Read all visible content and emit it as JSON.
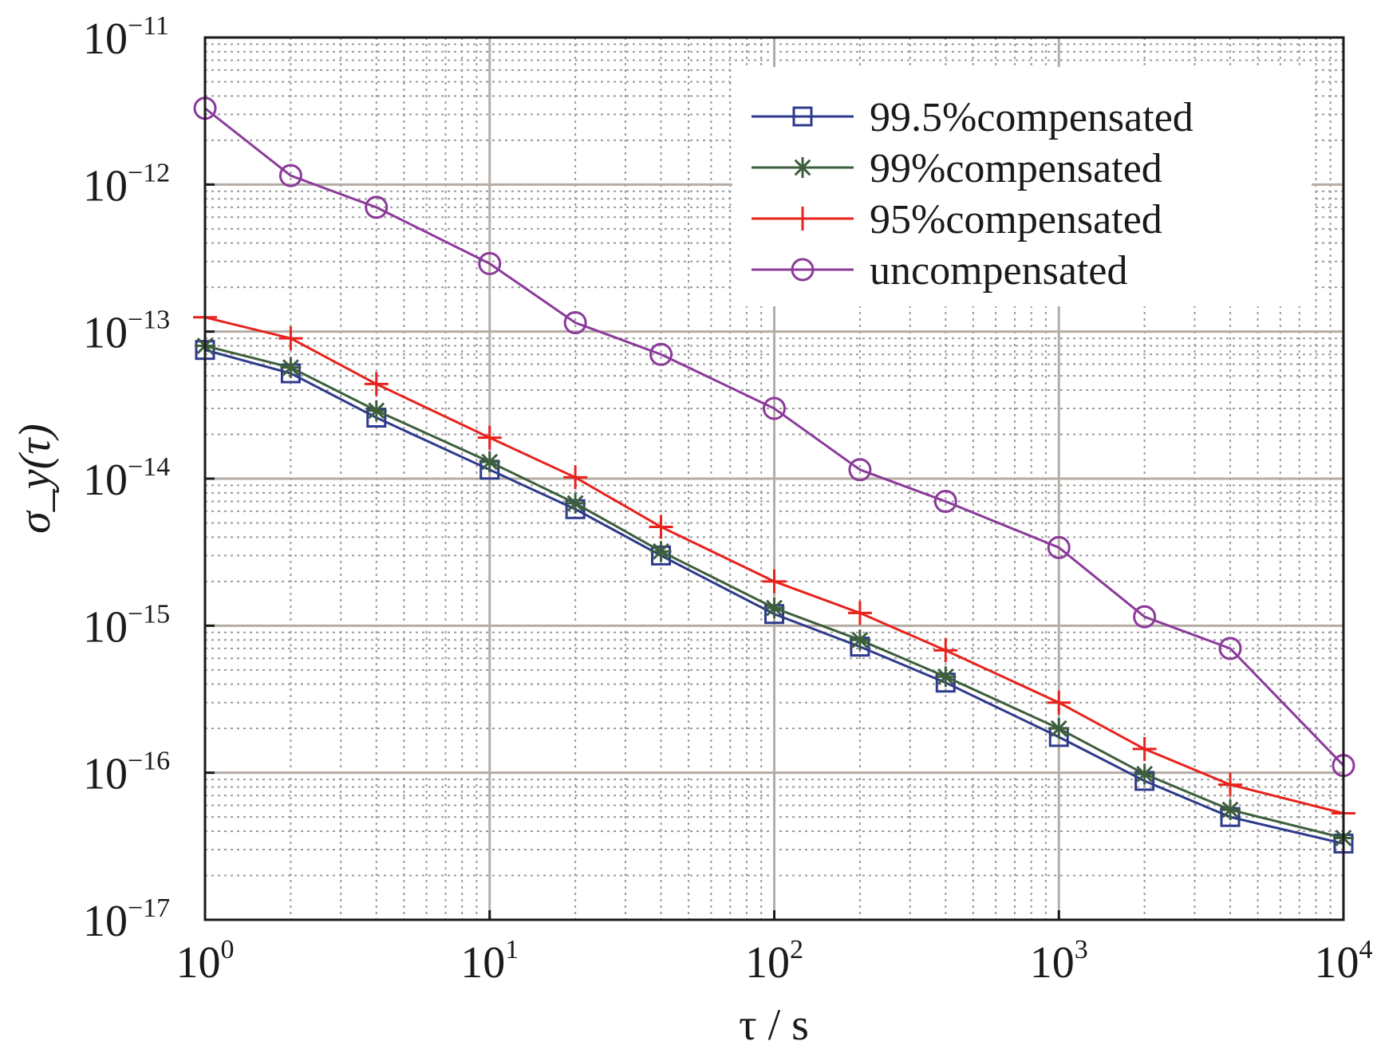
{
  "chart_data": {
    "type": "line",
    "xscale": "log",
    "yscale": "log",
    "xlim": [
      1,
      10000
    ],
    "ylim": [
      1e-17,
      1e-11
    ],
    "grid": true,
    "minor_grid": true,
    "legend_position": "top-right",
    "xlabel": "τ / s",
    "ylabel": "σ_y(τ)",
    "x_ticks": [
      {
        "base": "10",
        "exp": "0",
        "value": 1
      },
      {
        "base": "10",
        "exp": "1",
        "value": 10
      },
      {
        "base": "10",
        "exp": "2",
        "value": 100
      },
      {
        "base": "10",
        "exp": "3",
        "value": 1000
      },
      {
        "base": "10",
        "exp": "4",
        "value": 10000
      }
    ],
    "y_ticks": [
      {
        "base": "10",
        "exp": "−11",
        "value": 1e-11
      },
      {
        "base": "10",
        "exp": "−12",
        "value": 1e-12
      },
      {
        "base": "10",
        "exp": "−13",
        "value": 1e-13
      },
      {
        "base": "10",
        "exp": "−14",
        "value": 1e-14
      },
      {
        "base": "10",
        "exp": "−15",
        "value": 1e-15
      },
      {
        "base": "10",
        "exp": "−16",
        "value": 1e-16
      },
      {
        "base": "10",
        "exp": "−17",
        "value": 1e-17
      }
    ],
    "x": [
      1,
      2,
      4,
      10,
      20,
      40,
      100,
      200,
      400,
      1000,
      2000,
      4000,
      10000
    ],
    "series": [
      {
        "name": "99.5%compensated",
        "color": "#2e3a8c",
        "marker": "square",
        "values": [
          7.5e-14,
          5.2e-14,
          2.6e-14,
          1.15e-14,
          6.2e-15,
          3e-15,
          1.2e-15,
          7.2e-16,
          4.1e-16,
          1.75e-16,
          8.8e-17,
          5e-17,
          3.3e-17
        ]
      },
      {
        "name": "99%compensated",
        "color": "#3d5e3d",
        "marker": "asterisk",
        "values": [
          8e-14,
          5.7e-14,
          2.9e-14,
          1.3e-14,
          6.8e-15,
          3.2e-15,
          1.32e-15,
          8e-16,
          4.5e-16,
          2e-16,
          9.8e-17,
          5.6e-17,
          3.6e-17
        ]
      },
      {
        "name": "95%compensated",
        "color": "#e8221c",
        "marker": "plus",
        "values": [
          1.25e-13,
          9e-14,
          4.4e-14,
          1.9e-14,
          1.02e-14,
          4.7e-15,
          2e-15,
          1.22e-15,
          6.8e-16,
          3e-16,
          1.45e-16,
          8.3e-17,
          5.3e-17
        ]
      },
      {
        "name": "uncompensated",
        "color": "#8b3a9a",
        "marker": "circle",
        "values": [
          3.3e-12,
          1.15e-12,
          7e-13,
          2.9e-13,
          1.15e-13,
          7e-14,
          3e-14,
          1.15e-14,
          7e-15,
          3.4e-15,
          1.15e-15,
          7e-16,
          1.12e-16
        ]
      }
    ]
  }
}
